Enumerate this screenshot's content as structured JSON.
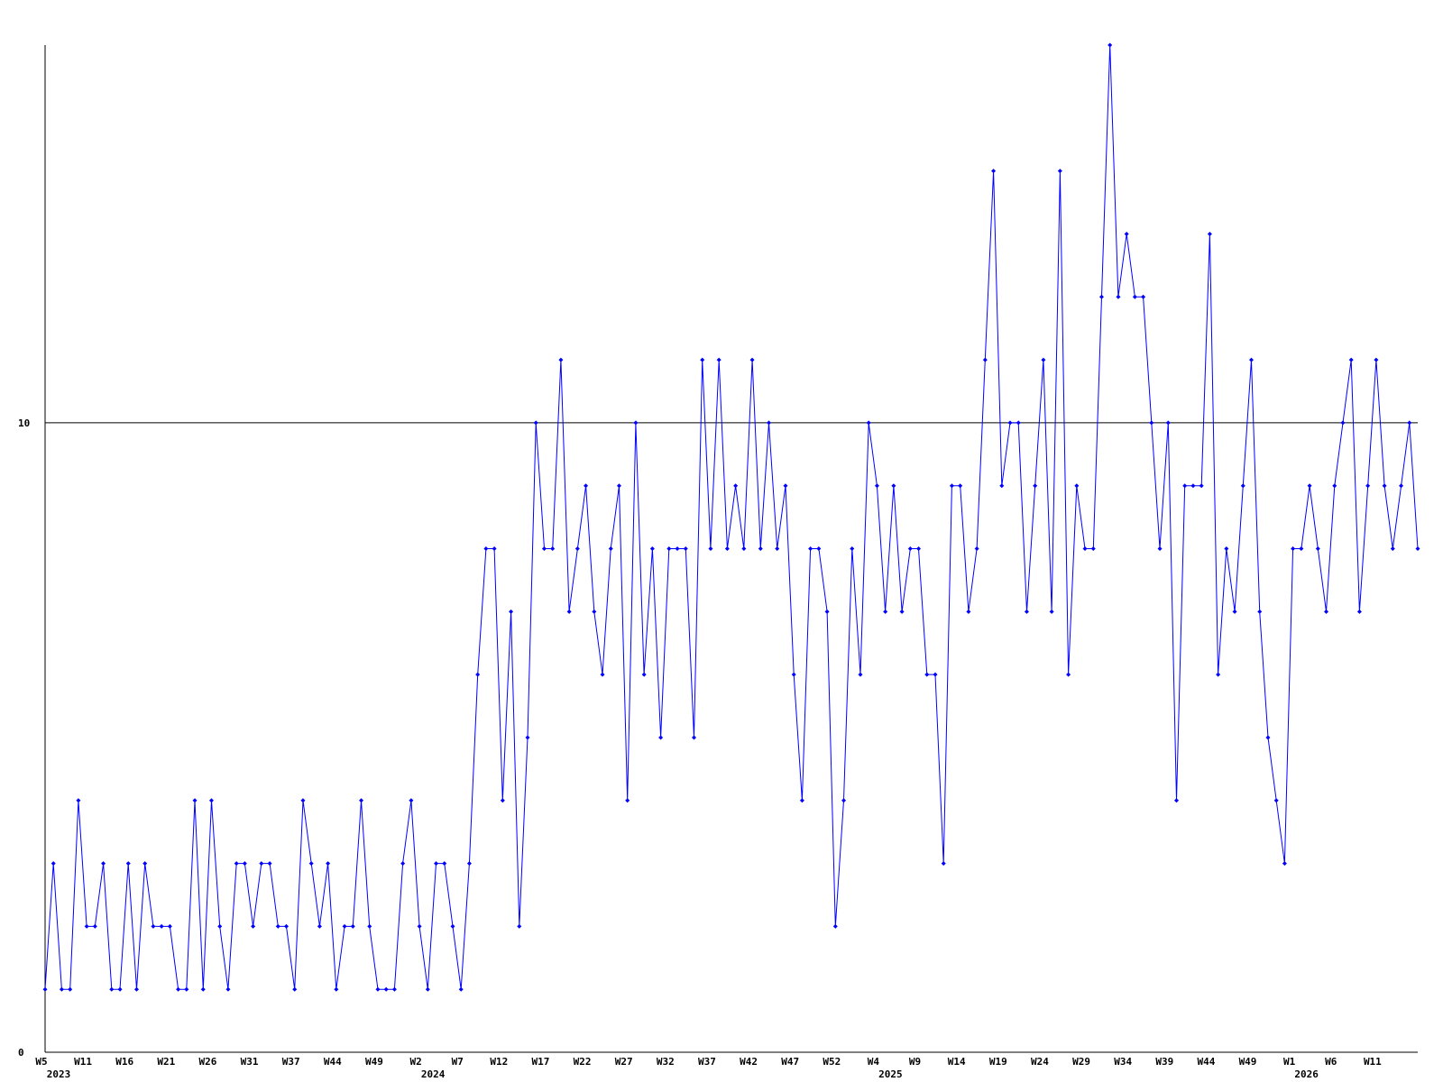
{
  "chart_data": {
    "type": "line",
    "categories": [
      "W5",
      null,
      null,
      null,
      null,
      "W11",
      null,
      null,
      null,
      null,
      "W16",
      null,
      null,
      null,
      null,
      "W21",
      null,
      null,
      null,
      null,
      "W26",
      null,
      null,
      null,
      null,
      "W31",
      null,
      null,
      null,
      null,
      "W37",
      null,
      null,
      null,
      null,
      "W44",
      null,
      null,
      null,
      null,
      "W49",
      null,
      null,
      null,
      null,
      "W2",
      null,
      null,
      null,
      null,
      "W7",
      null,
      null,
      null,
      null,
      "W12",
      null,
      null,
      null,
      null,
      "W17",
      null,
      null,
      null,
      null,
      "W22",
      null,
      null,
      null,
      null,
      "W27",
      null,
      null,
      null,
      null,
      "W32",
      null,
      null,
      null,
      null,
      "W37",
      null,
      null,
      null,
      null,
      "W42",
      null,
      null,
      null,
      null,
      "W47",
      null,
      null,
      null,
      null,
      "W52",
      null,
      null,
      null,
      null,
      "W4",
      null,
      null,
      null,
      null,
      "W9",
      null,
      null,
      null,
      null,
      "W14",
      null,
      null,
      null,
      null,
      "W19",
      null,
      null,
      null,
      null,
      "W24",
      null,
      null,
      null,
      null,
      "W29",
      null,
      null,
      null,
      null,
      "W34",
      null,
      null,
      null,
      null,
      "W39",
      null,
      null,
      null,
      null,
      "W44",
      null,
      null,
      null,
      null,
      "W49",
      null,
      null,
      null,
      null,
      "W1",
      null,
      null,
      null,
      null,
      "W6",
      null,
      null,
      null,
      null,
      "W11",
      null,
      null,
      null,
      null,
      null
    ],
    "year_labels": [
      "2023",
      null,
      null,
      null,
      null,
      null,
      null,
      null,
      null,
      null,
      null,
      null,
      null,
      null,
      null,
      null,
      null,
      null,
      null,
      null,
      null,
      null,
      null,
      null,
      null,
      null,
      null,
      null,
      null,
      null,
      null,
      null,
      null,
      null,
      null,
      null,
      null,
      null,
      null,
      null,
      null,
      null,
      null,
      null,
      null,
      "2024",
      null,
      null,
      null,
      null,
      null,
      null,
      null,
      null,
      null,
      null,
      null,
      null,
      null,
      null,
      null,
      null,
      null,
      null,
      null,
      null,
      null,
      null,
      null,
      null,
      null,
      null,
      null,
      null,
      null,
      null,
      null,
      null,
      null,
      null,
      null,
      null,
      null,
      null,
      null,
      null,
      null,
      null,
      null,
      null,
      null,
      null,
      null,
      null,
      null,
      null,
      null,
      null,
      null,
      null,
      "2025",
      null,
      null,
      null,
      null,
      null,
      null,
      null,
      null,
      null,
      null,
      null,
      null,
      null,
      null,
      null,
      null,
      null,
      null,
      null,
      null,
      null,
      null,
      null,
      null,
      null,
      null,
      null,
      null,
      null,
      null,
      null,
      null,
      null,
      null,
      null,
      null,
      null,
      null,
      null,
      null,
      null,
      null,
      null,
      null,
      null,
      null,
      null,
      null,
      null,
      "2026",
      null,
      null,
      null,
      null,
      null,
      null,
      null,
      null,
      null,
      null,
      null,
      null,
      null,
      null,
      null
    ],
    "series": [
      {
        "color": "#0000ff",
        "values": [
          1,
          3,
          1,
          1,
          4,
          2,
          2,
          3,
          1,
          1,
          3,
          1,
          3,
          2,
          2,
          2,
          1,
          1,
          4,
          1,
          4,
          2,
          1,
          3,
          3,
          2,
          3,
          3,
          2,
          2,
          1,
          4,
          3,
          2,
          3,
          1,
          2,
          2,
          4,
          2,
          1,
          1,
          1,
          3,
          4,
          2,
          1,
          3,
          3,
          2,
          1,
          3,
          6,
          8,
          8,
          4,
          7,
          2,
          5,
          10,
          8,
          8,
          11,
          7,
          8,
          9,
          7,
          6,
          8,
          9,
          4,
          10,
          6,
          8,
          5,
          8,
          8,
          8,
          5,
          11,
          8,
          11,
          8,
          9,
          8,
          11,
          8,
          10,
          8,
          9,
          6,
          4,
          8,
          8,
          7,
          2,
          4,
          8,
          6,
          10,
          9,
          7,
          9,
          7,
          8,
          8,
          6,
          6,
          3,
          9,
          9,
          7,
          8,
          11,
          14,
          9,
          10,
          10,
          7,
          9,
          11,
          7,
          14,
          6,
          9,
          8,
          8,
          12,
          16,
          12,
          13,
          12,
          12,
          10,
          8,
          10,
          4,
          9,
          9,
          9,
          13,
          6,
          8,
          7,
          9,
          11,
          7,
          5,
          4,
          3,
          8,
          8,
          9,
          8,
          7,
          9,
          10,
          11,
          7,
          9,
          11,
          9,
          8,
          9,
          10,
          8
        ]
      }
    ],
    "ylim": [
      0,
      16
    ],
    "yticks": [
      0,
      10
    ],
    "grid": true
  }
}
